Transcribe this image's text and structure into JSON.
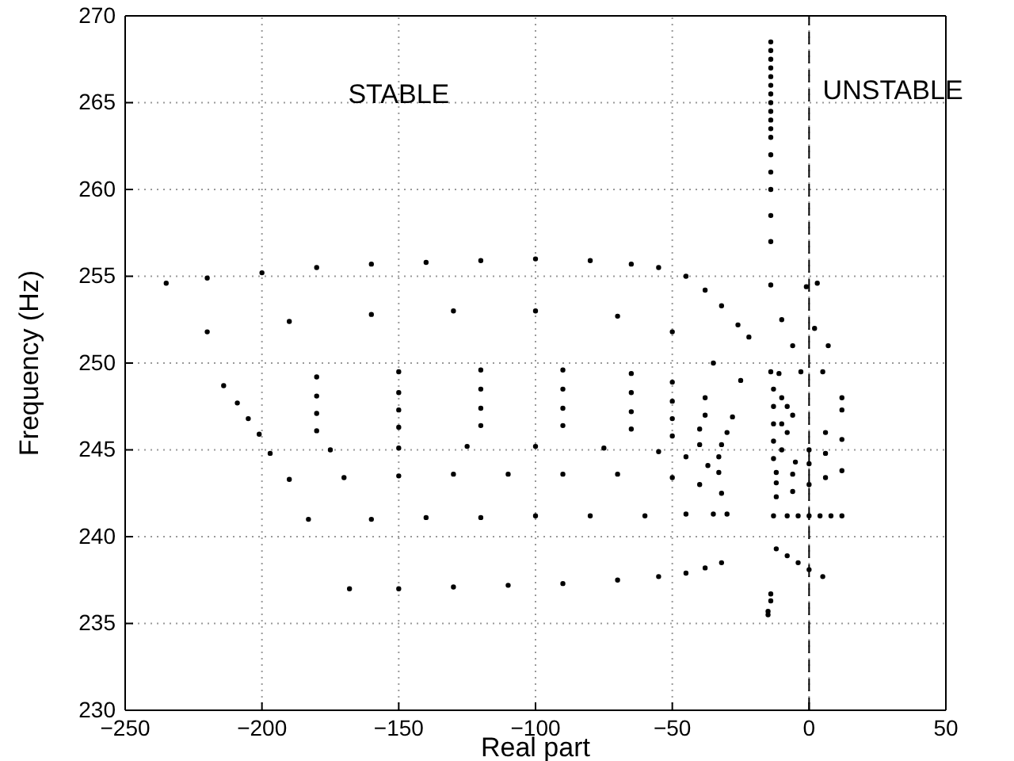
{
  "chart_data": {
    "type": "scatter",
    "xlabel": "Real part",
    "ylabel": "Frequency (Hz)",
    "xlim": [
      -250,
      50
    ],
    "ylim": [
      230,
      270
    ],
    "xticks": [
      -250,
      -200,
      -150,
      -100,
      -50,
      0,
      50
    ],
    "yticks": [
      230,
      235,
      240,
      245,
      250,
      255,
      260,
      265,
      270
    ],
    "grid": true,
    "marker": "circle",
    "annotations": [
      "STABLE",
      "UNSTABLE"
    ],
    "ref_lines": [
      {
        "axis": "x",
        "value": 0,
        "line_style": "dashed",
        "color": "#000000"
      }
    ],
    "series": [
      {
        "color": "#000000",
        "x": [
          -168,
          -150,
          -130,
          -110,
          -90,
          -70,
          -55,
          -45,
          -38,
          -32
        ],
        "values": [
          237.0,
          237.0,
          237.1,
          237.2,
          237.3,
          237.5,
          237.7,
          237.9,
          238.2,
          238.5
        ]
      },
      {
        "color": "#000000",
        "x": [
          -183,
          -160,
          -140,
          -120,
          -100,
          -80,
          -60,
          -45,
          -35,
          -30
        ],
        "values": [
          241.0,
          241.0,
          241.1,
          241.1,
          241.2,
          241.2,
          241.2,
          241.3,
          241.3,
          241.3
        ]
      },
      {
        "color": "#000000",
        "x": [
          -190,
          -170,
          -150,
          -130,
          -110,
          -90,
          -70,
          -50,
          -40,
          -32
        ],
        "values": [
          243.3,
          243.4,
          243.5,
          243.6,
          243.6,
          243.6,
          243.6,
          243.4,
          243.0,
          242.5
        ]
      },
      {
        "color": "#000000",
        "x": [
          -197,
          -175,
          -150,
          -125,
          -100,
          -75,
          -55,
          -45,
          -37,
          -33
        ],
        "values": [
          244.8,
          245.0,
          245.1,
          245.2,
          245.2,
          245.1,
          244.9,
          244.6,
          244.1,
          243.7
        ]
      },
      {
        "color": "#000000",
        "x": [
          -201,
          -180,
          -150,
          -120,
          -90,
          -65,
          -50,
          -40,
          -33
        ],
        "values": [
          245.9,
          246.1,
          246.3,
          246.4,
          246.4,
          246.2,
          245.8,
          245.3,
          244.6
        ]
      },
      {
        "color": "#000000",
        "x": [
          -205,
          -180,
          -150,
          -120,
          -90,
          -65,
          -50,
          -40,
          -32
        ],
        "values": [
          246.8,
          247.1,
          247.3,
          247.4,
          247.4,
          247.2,
          246.8,
          246.2,
          245.3
        ]
      },
      {
        "color": "#000000",
        "x": [
          -209,
          -180,
          -150,
          -120,
          -90,
          -65,
          -50,
          -38,
          -30
        ],
        "values": [
          247.7,
          248.1,
          248.3,
          248.5,
          248.5,
          248.3,
          247.8,
          247.0,
          246.0
        ]
      },
      {
        "color": "#000000",
        "x": [
          -214,
          -180,
          -150,
          -120,
          -90,
          -65,
          -50,
          -38,
          -28
        ],
        "values": [
          248.7,
          249.2,
          249.5,
          249.6,
          249.6,
          249.4,
          248.9,
          248.0,
          246.9
        ]
      },
      {
        "color": "#000000",
        "x": [
          -220,
          -190,
          -160,
          -130,
          -100,
          -70,
          -50,
          -35,
          -25
        ],
        "values": [
          251.8,
          252.4,
          252.8,
          253.0,
          253.0,
          252.7,
          251.8,
          250.0,
          249.0
        ]
      },
      {
        "color": "#000000",
        "x": [
          -235,
          -220,
          -200,
          -180,
          -160,
          -140,
          -120,
          -100,
          -80,
          -65,
          -55,
          -45,
          -38,
          -32,
          -26,
          -22
        ],
        "values": [
          254.6,
          254.9,
          255.2,
          255.5,
          255.7,
          255.8,
          255.9,
          256.0,
          255.9,
          255.7,
          255.5,
          255.0,
          254.2,
          253.3,
          252.2,
          251.5
        ]
      },
      {
        "color": "#000000",
        "x": [
          -14,
          -14,
          -14,
          -14,
          -14,
          -14,
          -14,
          -14,
          -14,
          -14,
          -14,
          -14,
          -14,
          -14,
          -14,
          -14,
          -14,
          -14,
          -14,
          -14,
          -14,
          -15,
          -15
        ],
        "values": [
          268.5,
          268,
          267.5,
          267,
          266.5,
          266,
          265.5,
          265,
          264.5,
          264,
          263.5,
          263,
          262,
          261,
          260,
          258.5,
          257,
          254.5,
          249.5,
          236.7,
          236.3,
          235.7,
          235.5
        ]
      },
      {
        "color": "#000000",
        "x": [
          -12,
          -8,
          -4,
          0,
          5,
          -13,
          -8,
          -4,
          0,
          4,
          8,
          12
        ],
        "values": [
          239.3,
          238.9,
          238.5,
          238.1,
          237.7,
          241.2,
          241.2,
          241.2,
          241.2,
          241.2,
          241.2,
          241.2
        ]
      },
      {
        "color": "#000000",
        "x": [
          -12,
          -6,
          0,
          6,
          12,
          -12,
          -6,
          0,
          6,
          12,
          -12,
          -5,
          0,
          6,
          12
        ],
        "values": [
          242.3,
          242.6,
          243.0,
          243.4,
          243.8,
          243.1,
          243.6,
          244.2,
          244.8,
          245.6,
          243.7,
          244.3,
          245.0,
          246.0,
          247.3
        ]
      },
      {
        "color": "#000000",
        "x": [
          -13,
          -13,
          -13,
          -13,
          -13,
          -11,
          -10,
          -10,
          -10,
          -8,
          -8,
          -6,
          -10,
          -6,
          -3,
          -1,
          2,
          5,
          3,
          7,
          12
        ],
        "values": [
          244.5,
          245.5,
          246.5,
          247.5,
          248.5,
          249.4,
          245.0,
          246.5,
          248.0,
          246.0,
          247.5,
          247.0,
          252.5,
          251.0,
          249.5,
          254.4,
          252.0,
          249.5,
          254.6,
          251.0,
          248.0
        ]
      }
    ]
  }
}
